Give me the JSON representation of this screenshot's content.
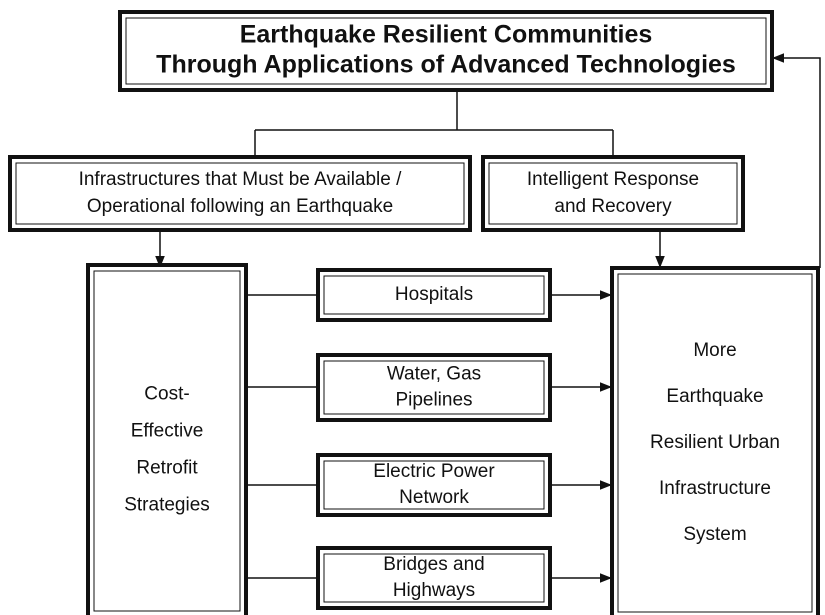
{
  "title": {
    "lines": [
      "Earthquake Resilient Communities",
      "Through Applications of Advanced Technologies"
    ]
  },
  "nodes": [
    {
      "lines": [
        "Infrastructures that Must be Available /",
        "Operational following an Earthquake"
      ]
    },
    {
      "lines": [
        "Intelligent Response",
        "and Recovery"
      ]
    },
    {
      "lines": [
        "Cost-",
        "Effective",
        "Retrofit",
        "Strategies"
      ]
    },
    {
      "lines": [
        "More",
        "Earthquake",
        "Resilient Urban",
        "Infrastructure",
        "System"
      ]
    },
    {
      "lines": [
        "Hospitals"
      ]
    },
    {
      "lines": [
        "Water, Gas",
        "Pipelines"
      ]
    },
    {
      "lines": [
        "Electric Power",
        "Network"
      ]
    },
    {
      "lines": [
        "Bridges and",
        "Highways"
      ]
    }
  ]
}
